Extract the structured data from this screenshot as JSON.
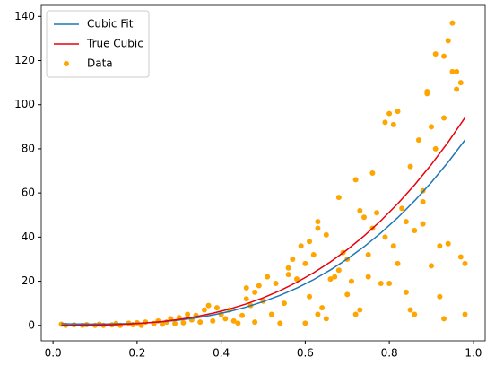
{
  "chart_data": {
    "type": "scatter",
    "xlim": [
      -0.028,
      1.028
    ],
    "ylim": [
      -7,
      145
    ],
    "xticks": [
      {
        "value": 0,
        "label": "0.0"
      },
      0.2,
      0.4,
      0.6,
      0.8,
      {
        "value": 1,
        "label": "1.0"
      }
    ],
    "yticks": [
      0,
      20,
      40,
      60,
      80,
      100,
      120,
      140
    ],
    "legend": "upper left",
    "series": [
      {
        "name": "Cubic Fit",
        "kind": "line",
        "color": "#1f77b4",
        "x": [
          0.02,
          0.06,
          0.1,
          0.14,
          0.18,
          0.22,
          0.26,
          0.3,
          0.34,
          0.38,
          0.42,
          0.46,
          0.5,
          0.54,
          0.58,
          0.62,
          0.66,
          0.7,
          0.74,
          0.78,
          0.82,
          0.86,
          0.9,
          0.94,
          0.98
        ],
        "values": [
          0.74,
          0.64,
          0.59,
          0.63,
          0.79,
          1.11,
          1.63,
          2.37,
          3.38,
          4.68,
          6.32,
          8.32,
          10.74,
          13.59,
          16.91,
          20.74,
          25.13,
          30.08,
          35.66,
          41.89,
          48.79,
          56.42,
          64.8,
          73.98,
          83.98
        ]
      },
      {
        "name": "True Cubic",
        "kind": "line",
        "color": "#e8000b",
        "x": [
          0.02,
          0.06,
          0.1,
          0.14,
          0.18,
          0.22,
          0.26,
          0.3,
          0.34,
          0.38,
          0.42,
          0.46,
          0.5,
          0.54,
          0.58,
          0.62,
          0.66,
          0.7,
          0.74,
          0.78,
          0.82,
          0.86,
          0.9,
          0.94,
          0.98
        ],
        "values": [
          0.0,
          0.02,
          0.1,
          0.27,
          0.58,
          1.06,
          1.76,
          2.7,
          3.93,
          5.49,
          7.41,
          9.73,
          12.5,
          15.75,
          19.51,
          23.83,
          28.75,
          34.3,
          40.52,
          47.46,
          55.14,
          63.61,
          72.9,
          83.06,
          94.12
        ]
      },
      {
        "name": "Data",
        "kind": "scatter",
        "color": "#ffa500",
        "x": [
          0.02,
          0.03,
          0.05,
          0.07,
          0.08,
          0.1,
          0.11,
          0.12,
          0.14,
          0.15,
          0.16,
          0.18,
          0.19,
          0.2,
          0.21,
          0.22,
          0.24,
          0.25,
          0.26,
          0.27,
          0.28,
          0.29,
          0.3,
          0.31,
          0.32,
          0.33,
          0.34,
          0.35,
          0.36,
          0.37,
          0.38,
          0.39,
          0.4,
          0.41,
          0.42,
          0.43,
          0.44,
          0.45,
          0.46,
          0.46,
          0.47,
          0.48,
          0.48,
          0.49,
          0.5,
          0.51,
          0.52,
          0.53,
          0.54,
          0.55,
          0.56,
          0.56,
          0.57,
          0.58,
          0.59,
          0.6,
          0.6,
          0.61,
          0.61,
          0.62,
          0.63,
          0.63,
          0.63,
          0.64,
          0.65,
          0.65,
          0.66,
          0.67,
          0.68,
          0.68,
          0.69,
          0.7,
          0.7,
          0.71,
          0.72,
          0.72,
          0.73,
          0.73,
          0.74,
          0.75,
          0.75,
          0.76,
          0.76,
          0.77,
          0.78,
          0.79,
          0.79,
          0.8,
          0.8,
          0.81,
          0.81,
          0.82,
          0.82,
          0.83,
          0.84,
          0.84,
          0.85,
          0.85,
          0.86,
          0.86,
          0.87,
          0.88,
          0.88,
          0.88,
          0.89,
          0.89,
          0.9,
          0.9,
          0.91,
          0.91,
          0.92,
          0.92,
          0.93,
          0.93,
          0.93,
          0.94,
          0.94,
          0.95,
          0.96,
          0.96,
          0.97,
          0.97,
          0.98,
          0.98,
          0.95
        ],
        "values": [
          0.5,
          0,
          0.2,
          0,
          0.3,
          0,
          0.5,
          0,
          0.2,
          0.8,
          0,
          1,
          0.3,
          1.2,
          0,
          1.5,
          0.8,
          2,
          0.5,
          1.5,
          3,
          0.8,
          3.5,
          1.2,
          5,
          2.5,
          4.5,
          1.5,
          7,
          9,
          2,
          8,
          5,
          3,
          7,
          2,
          1,
          4.5,
          17,
          12,
          9,
          1.5,
          15,
          18,
          11,
          22,
          5,
          19,
          1,
          10,
          26,
          23,
          30,
          21,
          36,
          28,
          1,
          38,
          13,
          32,
          44,
          47,
          5,
          8,
          3,
          41,
          21,
          22,
          58,
          25,
          33,
          30,
          14,
          20,
          66,
          5,
          52,
          7,
          49,
          32,
          22,
          44,
          69,
          51,
          19,
          40,
          92,
          96,
          19,
          91,
          36,
          97,
          28,
          53,
          47,
          15,
          72,
          7,
          43,
          5,
          84,
          61,
          46,
          56,
          106,
          105,
          90,
          27,
          80,
          123,
          13,
          36,
          94,
          122,
          3,
          37,
          129,
          137,
          107,
          115,
          110,
          31,
          28,
          5,
          115
        ]
      }
    ]
  }
}
